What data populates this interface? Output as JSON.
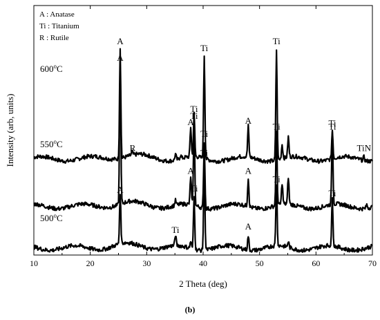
{
  "chart_data": {
    "type": "line",
    "xlabel": "2 Theta (deg)",
    "ylabel": "Intensity (arb, units)",
    "xlim": [
      10,
      70
    ],
    "xticks": [
      10,
      20,
      30,
      40,
      50,
      60,
      70
    ],
    "grid": false,
    "legend": {
      "position": "top-left",
      "entries": [
        "A : Anatase",
        "Ti : Titanium",
        "R  : Rutile"
      ]
    },
    "series": [
      {
        "name": "600°C",
        "label_base": "600",
        "label_sup": "o",
        "label_unit": "C",
        "baseline": 8.1,
        "peaks": [
          {
            "x": 25.3,
            "h": 9.3
          },
          {
            "x": 27.4,
            "h": 0.3
          },
          {
            "x": 35.1,
            "h": 0.5
          },
          {
            "x": 36.0,
            "h": 0.3
          },
          {
            "x": 37.8,
            "h": 2.5
          },
          {
            "x": 38.4,
            "h": 3.6
          },
          {
            "x": 40.2,
            "h": 8.7
          },
          {
            "x": 48.0,
            "h": 2.6
          },
          {
            "x": 53.0,
            "h": 9.3
          },
          {
            "x": 54.0,
            "h": 1.2
          },
          {
            "x": 55.1,
            "h": 1.7
          },
          {
            "x": 62.9,
            "h": 2.4
          },
          {
            "x": 68.5,
            "h": 0.3
          }
        ],
        "annotations": [
          {
            "x": 25.3,
            "text": "A"
          },
          {
            "x": 27.5,
            "text": "R"
          },
          {
            "x": 37.8,
            "text": "A"
          },
          {
            "x": 38.4,
            "text": "Ti"
          },
          {
            "x": 40.2,
            "text": "Ti"
          },
          {
            "x": 48.0,
            "text": "A"
          },
          {
            "x": 53.0,
            "text": "Ti"
          },
          {
            "x": 62.9,
            "text": "Ti"
          },
          {
            "x": 68.5,
            "text": "TiN"
          }
        ]
      },
      {
        "name": "550°C",
        "label_base": "550",
        "label_sup": "o",
        "label_unit": "C",
        "baseline": 4.1,
        "peaks": [
          {
            "x": 25.3,
            "h": 11.9
          },
          {
            "x": 35.1,
            "h": 0.4
          },
          {
            "x": 37.8,
            "h": 2.4
          },
          {
            "x": 38.4,
            "h": 7.0
          },
          {
            "x": 40.2,
            "h": 5.5
          },
          {
            "x": 48.0,
            "h": 2.4
          },
          {
            "x": 53.0,
            "h": 6.1
          },
          {
            "x": 54.0,
            "h": 1.8
          },
          {
            "x": 55.1,
            "h": 2.3
          },
          {
            "x": 62.9,
            "h": 6.1
          },
          {
            "x": 69.0,
            "h": 0.3
          }
        ],
        "annotations": [
          {
            "x": 25.3,
            "text": "A"
          },
          {
            "x": 37.8,
            "text": "A"
          },
          {
            "x": 38.4,
            "text": "Ti"
          },
          {
            "x": 40.2,
            "text": "Ti"
          },
          {
            "x": 48.0,
            "text": "A"
          },
          {
            "x": 53.0,
            "text": "Ti"
          },
          {
            "x": 62.9,
            "text": "Ti"
          }
        ]
      },
      {
        "name": "500°C",
        "label_base": "500",
        "label_sup": "o",
        "label_unit": "C",
        "baseline": 0.6,
        "peaks": [
          {
            "x": 25.3,
            "h": 4.3
          },
          {
            "x": 35.1,
            "h": 0.9
          },
          {
            "x": 37.8,
            "h": 0.6
          },
          {
            "x": 38.4,
            "h": 4.4
          },
          {
            "x": 40.2,
            "h": 7.4
          },
          {
            "x": 48.0,
            "h": 1.2
          },
          {
            "x": 53.0,
            "h": 5.2
          },
          {
            "x": 55.1,
            "h": 0.5
          },
          {
            "x": 62.9,
            "h": 4.0
          }
        ],
        "annotations": [
          {
            "x": 25.3,
            "text": "A"
          },
          {
            "x": 35.1,
            "text": "Ti"
          },
          {
            "x": 38.4,
            "text": "Ti"
          },
          {
            "x": 40.2,
            "text": "Ti"
          },
          {
            "x": 48.0,
            "text": "A"
          },
          {
            "x": 53.0,
            "text": "Ti"
          },
          {
            "x": 62.9,
            "text": "Ti"
          }
        ]
      }
    ]
  },
  "caption": "(b)"
}
